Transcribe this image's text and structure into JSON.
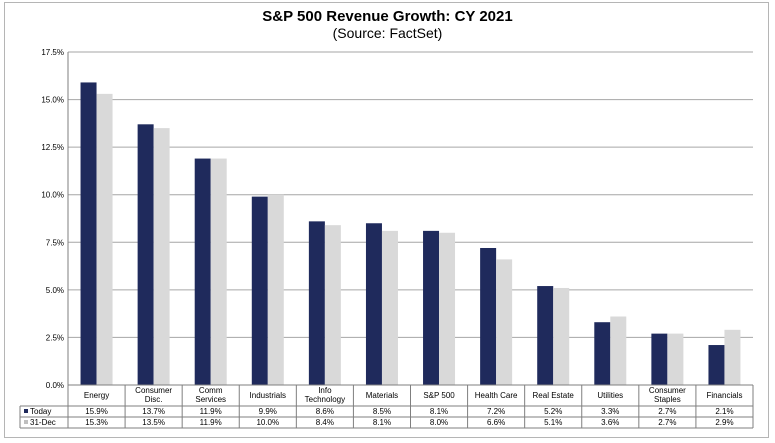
{
  "chart_data": {
    "type": "bar",
    "title": "S&P 500 Revenue Growth: CY 2021",
    "subtitle": "(Source: FactSet)",
    "categories": [
      [
        "Energy"
      ],
      [
        "Consumer",
        "Disc."
      ],
      [
        "Comm",
        "Services"
      ],
      [
        "Industrials"
      ],
      [
        "Info",
        "Technology"
      ],
      [
        "Materials"
      ],
      [
        "S&P 500"
      ],
      [
        "Health Care"
      ],
      [
        "Real Estate"
      ],
      [
        "Utilities"
      ],
      [
        "Consumer",
        "Staples"
      ],
      [
        "Financials"
      ]
    ],
    "series": [
      {
        "name": "Today",
        "color": "#1f2a5c",
        "values": [
          15.9,
          13.7,
          11.9,
          9.9,
          8.6,
          8.5,
          8.1,
          7.2,
          5.2,
          3.3,
          2.7,
          2.1
        ],
        "labels": [
          "15.9%",
          "13.7%",
          "11.9%",
          "9.9%",
          "8.6%",
          "8.5%",
          "8.1%",
          "7.2%",
          "5.2%",
          "3.3%",
          "2.7%",
          "2.1%"
        ]
      },
      {
        "name": "31-Dec",
        "color": "#d9d9d9",
        "values": [
          15.3,
          13.5,
          11.9,
          10.0,
          8.4,
          8.1,
          8.0,
          6.6,
          5.1,
          3.6,
          2.7,
          2.9
        ],
        "labels": [
          "15.3%",
          "13.5%",
          "11.9%",
          "10.0%",
          "8.4%",
          "8.1%",
          "8.0%",
          "6.6%",
          "5.1%",
          "3.6%",
          "2.7%",
          "2.9%"
        ]
      }
    ],
    "ylim": [
      0,
      17.5
    ],
    "yticks": [
      {
        "v": 0,
        "label": "0.0%"
      },
      {
        "v": 2.5,
        "label": "2.5%"
      },
      {
        "v": 5,
        "label": "5.0%"
      },
      {
        "v": 7.5,
        "label": "7.5%"
      },
      {
        "v": 10,
        "label": "10.0%"
      },
      {
        "v": 12.5,
        "label": "12.5%"
      },
      {
        "v": 15,
        "label": "15.0%"
      },
      {
        "v": 17.5,
        "label": "17.5%"
      }
    ],
    "grid": true,
    "legend": "data-table-left"
  }
}
